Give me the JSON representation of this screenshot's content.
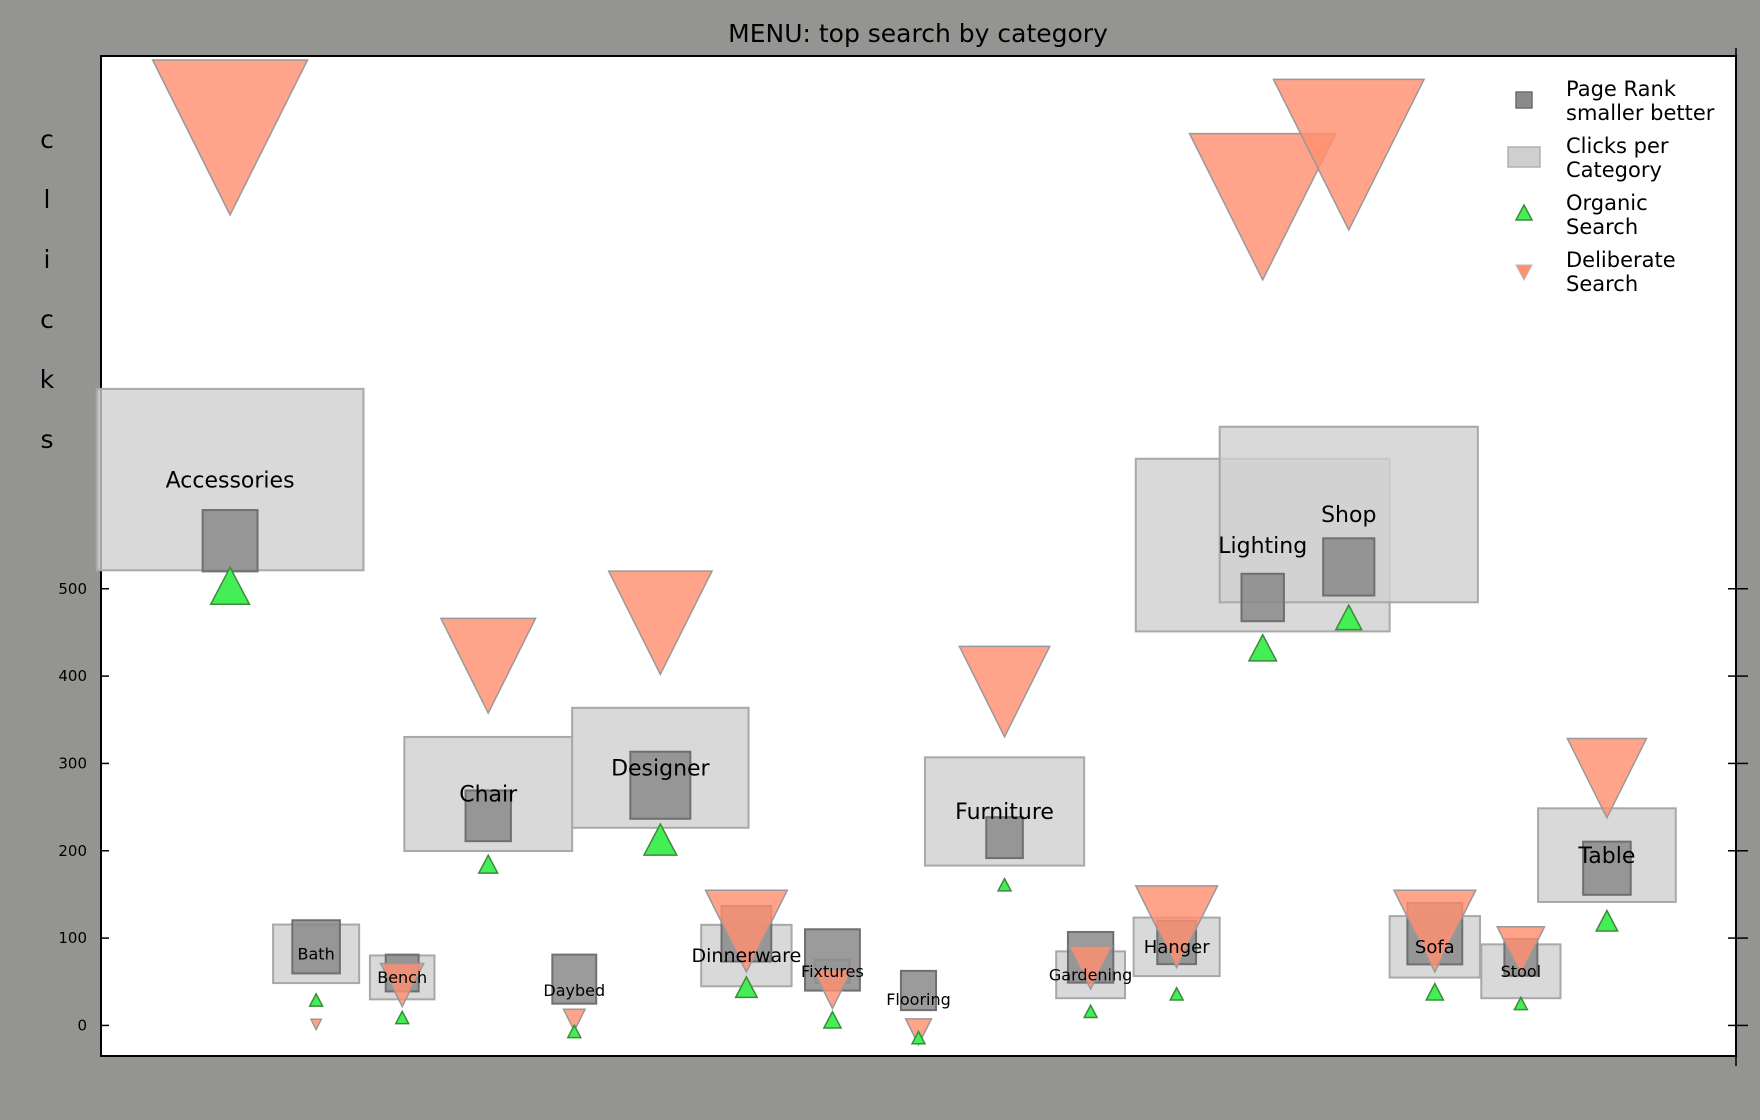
{
  "chart_data": {
    "type": "scatter",
    "title": "MENU: top search by category",
    "ylabel": "clicks",
    "ylabel_letters": [
      "c",
      "l",
      "i",
      "c",
      "k",
      "s"
    ],
    "xlabel": "",
    "ylim": [
      -35,
      1110
    ],
    "xlim": [
      0,
      19
    ],
    "yticks": [
      0,
      100,
      200,
      300,
      400,
      500
    ],
    "grid": false,
    "legend_position": "top-right",
    "legend": [
      {
        "name": "Page Rank\nsmaller better",
        "line1": "Page Rank",
        "line2": "smaller better",
        "marker": "square"
      },
      {
        "name": "Clicks per\nCategory",
        "line1": "Clicks per",
        "line2": "Category",
        "marker": "rect"
      },
      {
        "name": "Organic\nSearch",
        "line1": "Organic",
        "line2": "Search",
        "marker": "triangle-up"
      },
      {
        "name": "Deliberate\nSearch",
        "line1": "Deliberate",
        "line2": "Search",
        "marker": "triangle-down"
      }
    ],
    "colors": {
      "page_rank": "#8a8a8a",
      "clicks_box": "#cfcfcf",
      "organic": "#44ee55",
      "deliberate": "#ff9070",
      "edge": "#888888"
    },
    "categories": [
      "Accessories",
      "Bath",
      "Bench",
      "Chair",
      "Daybed",
      "Designer",
      "Dinnerware",
      "Fixtures",
      "Flooring",
      "Furniture",
      "Gardening",
      "Hanger",
      "Lighting",
      "Shop",
      "Sofa",
      "Stool",
      "Table"
    ],
    "x": [
      1.5,
      2.5,
      3.5,
      4.5,
      5.5,
      6.5,
      7.5,
      8.5,
      9.5,
      10.5,
      11.5,
      12.5,
      13.5,
      14.5,
      15.5,
      16.5,
      17.5
    ],
    "organic": [
      500,
      28,
      8,
      183,
      -8,
      210,
      42,
      5,
      -15,
      160,
      15,
      35,
      430,
      465,
      37,
      24,
      118
    ],
    "deliberate": [
      1030,
      2,
      50,
      420,
      8,
      470,
      115,
      45,
      -5,
      390,
      70,
      120,
      950,
      1010,
      115,
      90,
      290
    ],
    "page_rank": [
      555,
      90,
      60,
      240,
      53,
      275,
      105,
      75,
      40,
      215,
      78,
      95,
      490,
      525,
      105,
      78,
      180
    ],
    "clicks": [
      625,
      82,
      55,
      265,
      40,
      295,
      80,
      62,
      30,
      245,
      58,
      90,
      550,
      585,
      90,
      62,
      195
    ],
    "page_rank_size": [
      0.75,
      0.65,
      0.45,
      0.62,
      0.6,
      0.82,
      0.68,
      0.75,
      0.48,
      0.5,
      0.62,
      0.53,
      0.58,
      0.7,
      0.75,
      0.45,
      0.65
    ],
    "clicks_box_size": [
      3.1,
      1.0,
      0.75,
      1.95,
      0,
      2.05,
      1.05,
      0.4,
      0,
      1.85,
      0.8,
      1.0,
      2.95,
      3.0,
      1.05,
      0.92,
      1.6
    ],
    "organic_size": [
      0.45,
      0.15,
      0.15,
      0.22,
      0.15,
      0.38,
      0.25,
      0.2,
      0.15,
      0.15,
      0.15,
      0.15,
      0.32,
      0.3,
      0.2,
      0.15,
      0.25
    ],
    "deliberate_size": [
      1.8,
      0.12,
      0.5,
      1.1,
      0.25,
      1.2,
      0.95,
      0.45,
      0.3,
      1.05,
      0.5,
      0.95,
      1.7,
      1.75,
      0.95,
      0.55,
      0.92
    ],
    "label_fontsize": [
      22,
      16,
      16,
      22,
      16,
      22,
      19,
      16,
      16,
      22,
      16,
      18,
      22,
      22,
      18,
      16,
      22
    ]
  }
}
